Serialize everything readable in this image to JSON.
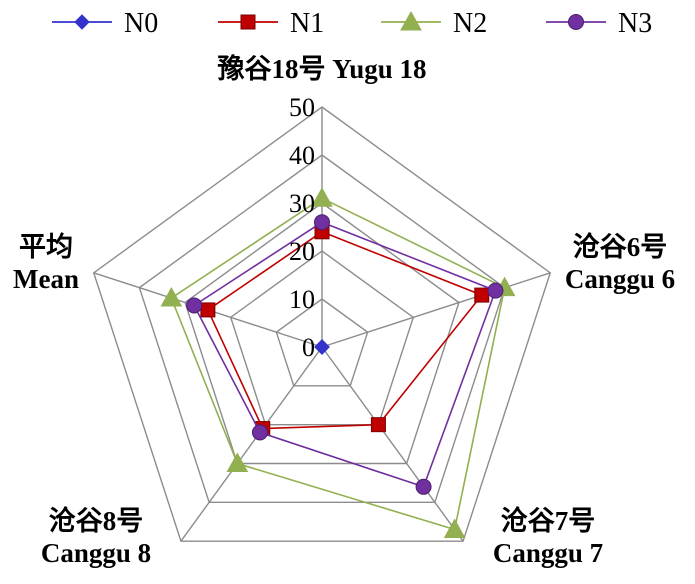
{
  "chart_data": {
    "type": "radar",
    "categories": [
      [
        "豫谷18号 Yugu 18"
      ],
      [
        "沧谷6号",
        "Canggu 6"
      ],
      [
        "沧谷7号",
        "Canggu 7"
      ],
      [
        "沧谷8号",
        "Canggu 8"
      ],
      [
        "平均",
        "Mean"
      ]
    ],
    "rlim": [
      0,
      50
    ],
    "ticks": [
      "0",
      "10",
      "20",
      "30",
      "40",
      "50"
    ],
    "tick_values": [
      0,
      10,
      20,
      30,
      40,
      50
    ],
    "grid": true,
    "legend_position": "top",
    "series": [
      {
        "name": "N0",
        "values": [
          0,
          0,
          0,
          0,
          0
        ],
        "color": "#3333cc",
        "marker": "diamond"
      },
      {
        "name": "N1",
        "values": [
          24,
          35,
          20,
          21,
          25
        ],
        "color": "#c00000",
        "marker": "square"
      },
      {
        "name": "N2",
        "values": [
          31,
          40,
          47,
          30,
          33
        ],
        "color": "#92b050",
        "marker": "triangle"
      },
      {
        "name": "N3",
        "values": [
          26,
          38,
          36,
          22,
          28
        ],
        "color": "#7030a0",
        "marker": "circle"
      }
    ]
  }
}
